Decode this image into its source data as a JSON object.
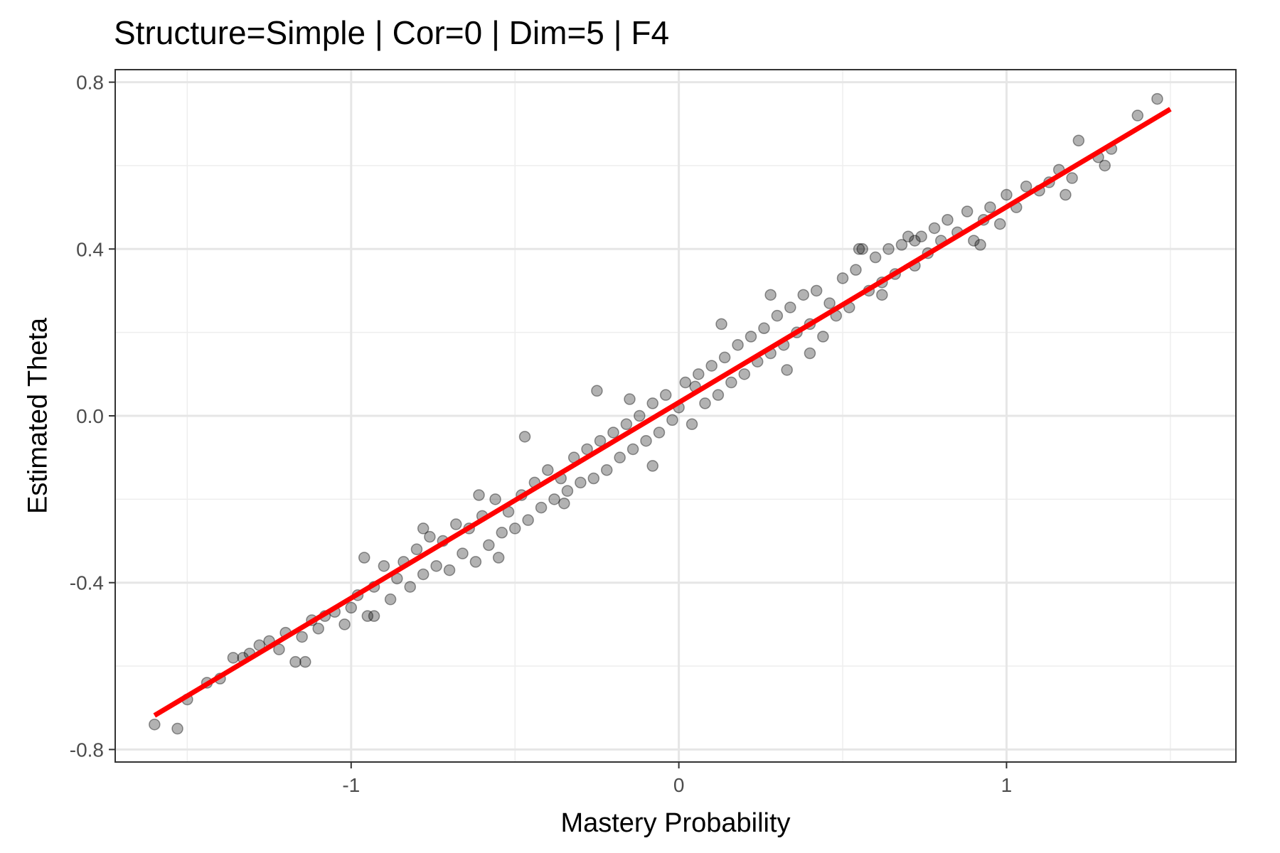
{
  "chart_data": {
    "type": "scatter",
    "title": "Structure=Simple | Cor=0 | Dim=5 | F4",
    "xlabel": "Mastery Probability",
    "ylabel": "Estimated Theta",
    "xlim": [
      -1.72,
      1.7
    ],
    "ylim": [
      -0.83,
      0.83
    ],
    "x_ticks": [
      -1,
      0,
      1
    ],
    "x_tick_labels": [
      "-1",
      "0",
      "1"
    ],
    "y_ticks": [
      -0.8,
      -0.4,
      0.0,
      0.4,
      0.8
    ],
    "y_tick_labels": [
      "-0.8",
      "-0.4",
      "0.0",
      "0.4",
      "0.8"
    ],
    "grid": true,
    "legend": "none",
    "point_color": "#000000",
    "point_opacity": 0.3,
    "line_color": "#ff0000",
    "fit_line": {
      "slope": 0.469,
      "intercept": 0.032,
      "x_range": [
        -1.6,
        1.5
      ]
    },
    "points": [
      [
        -1.6,
        -0.74
      ],
      [
        -1.53,
        -0.75
      ],
      [
        -1.5,
        -0.68
      ],
      [
        -1.44,
        -0.64
      ],
      [
        -1.4,
        -0.63
      ],
      [
        -1.36,
        -0.58
      ],
      [
        -1.33,
        -0.58
      ],
      [
        -1.31,
        -0.57
      ],
      [
        -1.28,
        -0.55
      ],
      [
        -1.25,
        -0.54
      ],
      [
        -1.22,
        -0.56
      ],
      [
        -1.2,
        -0.52
      ],
      [
        -1.15,
        -0.53
      ],
      [
        -1.17,
        -0.59
      ],
      [
        -1.14,
        -0.59
      ],
      [
        -1.12,
        -0.49
      ],
      [
        -1.1,
        -0.51
      ],
      [
        -1.08,
        -0.48
      ],
      [
        -1.05,
        -0.47
      ],
      [
        -1.02,
        -0.5
      ],
      [
        -1.0,
        -0.46
      ],
      [
        -0.98,
        -0.43
      ],
      [
        -0.95,
        -0.48
      ],
      [
        -0.93,
        -0.41
      ],
      [
        -0.96,
        -0.34
      ],
      [
        -0.9,
        -0.36
      ],
      [
        -0.88,
        -0.44
      ],
      [
        -0.86,
        -0.39
      ],
      [
        -0.84,
        -0.35
      ],
      [
        -0.82,
        -0.41
      ],
      [
        -0.8,
        -0.32
      ],
      [
        -0.78,
        -0.38
      ],
      [
        -0.76,
        -0.29
      ],
      [
        -0.74,
        -0.36
      ],
      [
        -0.72,
        -0.3
      ],
      [
        -0.7,
        -0.37
      ],
      [
        -0.68,
        -0.26
      ],
      [
        -0.66,
        -0.33
      ],
      [
        -0.64,
        -0.27
      ],
      [
        -0.62,
        -0.35
      ],
      [
        -0.6,
        -0.24
      ],
      [
        -0.58,
        -0.31
      ],
      [
        -0.56,
        -0.2
      ],
      [
        -0.54,
        -0.28
      ],
      [
        -0.52,
        -0.23
      ],
      [
        -0.5,
        -0.27
      ],
      [
        -0.48,
        -0.19
      ],
      [
        -0.46,
        -0.25
      ],
      [
        -0.44,
        -0.16
      ],
      [
        -0.42,
        -0.22
      ],
      [
        -0.4,
        -0.13
      ],
      [
        -0.38,
        -0.2
      ],
      [
        -0.36,
        -0.15
      ],
      [
        -0.34,
        -0.18
      ],
      [
        -0.32,
        -0.1
      ],
      [
        -0.3,
        -0.16
      ],
      [
        -0.28,
        -0.08
      ],
      [
        -0.26,
        -0.15
      ],
      [
        -0.24,
        -0.06
      ],
      [
        -0.22,
        -0.13
      ],
      [
        -0.2,
        -0.04
      ],
      [
        -0.18,
        -0.1
      ],
      [
        -0.16,
        -0.02
      ],
      [
        -0.14,
        -0.08
      ],
      [
        -0.12,
        0.0
      ],
      [
        -0.1,
        -0.06
      ],
      [
        -0.08,
        0.03
      ],
      [
        -0.06,
        -0.04
      ],
      [
        -0.04,
        0.05
      ],
      [
        -0.02,
        -0.01
      ],
      [
        0.0,
        0.02
      ],
      [
        0.02,
        0.08
      ],
      [
        0.04,
        -0.02
      ],
      [
        0.06,
        0.1
      ],
      [
        0.08,
        0.03
      ],
      [
        0.1,
        0.12
      ],
      [
        0.12,
        0.05
      ],
      [
        0.14,
        0.14
      ],
      [
        0.16,
        0.08
      ],
      [
        0.18,
        0.17
      ],
      [
        0.2,
        0.1
      ],
      [
        0.22,
        0.19
      ],
      [
        0.24,
        0.13
      ],
      [
        0.26,
        0.21
      ],
      [
        0.28,
        0.15
      ],
      [
        0.3,
        0.24
      ],
      [
        0.32,
        0.17
      ],
      [
        0.34,
        0.26
      ],
      [
        0.36,
        0.2
      ],
      [
        0.38,
        0.29
      ],
      [
        0.4,
        0.22
      ],
      [
        0.42,
        0.3
      ],
      [
        0.44,
        0.19
      ],
      [
        0.46,
        0.27
      ],
      [
        0.48,
        0.24
      ],
      [
        0.5,
        0.33
      ],
      [
        0.52,
        0.26
      ],
      [
        0.54,
        0.35
      ],
      [
        0.56,
        0.4
      ],
      [
        0.58,
        0.3
      ],
      [
        0.6,
        0.38
      ],
      [
        0.62,
        0.32
      ],
      [
        0.64,
        0.4
      ],
      [
        0.66,
        0.34
      ],
      [
        0.68,
        0.41
      ],
      [
        0.7,
        0.43
      ],
      [
        0.72,
        0.36
      ],
      [
        0.74,
        0.43
      ],
      [
        0.76,
        0.39
      ],
      [
        0.78,
        0.45
      ],
      [
        0.8,
        0.42
      ],
      [
        0.82,
        0.47
      ],
      [
        0.85,
        0.44
      ],
      [
        0.88,
        0.49
      ],
      [
        0.9,
        0.42
      ],
      [
        0.93,
        0.47
      ],
      [
        0.95,
        0.5
      ],
      [
        0.98,
        0.46
      ],
      [
        1.0,
        0.53
      ],
      [
        1.03,
        0.5
      ],
      [
        1.06,
        0.55
      ],
      [
        1.1,
        0.54
      ],
      [
        1.13,
        0.56
      ],
      [
        1.16,
        0.59
      ],
      [
        1.18,
        0.53
      ],
      [
        1.2,
        0.57
      ],
      [
        1.22,
        0.66
      ],
      [
        1.28,
        0.62
      ],
      [
        1.3,
        0.6
      ],
      [
        1.32,
        0.64
      ],
      [
        1.4,
        0.72
      ],
      [
        1.46,
        0.76
      ],
      [
        -0.25,
        0.06
      ],
      [
        0.13,
        0.22
      ],
      [
        -0.61,
        -0.19
      ],
      [
        -0.47,
        -0.05
      ],
      [
        0.72,
        0.42
      ],
      [
        0.55,
        0.4
      ],
      [
        0.92,
        0.41
      ],
      [
        0.4,
        0.15
      ],
      [
        -0.93,
        -0.48
      ],
      [
        -0.08,
        -0.12
      ],
      [
        0.28,
        0.29
      ],
      [
        -0.78,
        -0.27
      ],
      [
        0.62,
        0.29
      ],
      [
        -0.35,
        -0.21
      ],
      [
        -0.55,
        -0.34
      ],
      [
        0.05,
        0.07
      ],
      [
        -0.15,
        0.04
      ],
      [
        0.33,
        0.11
      ]
    ]
  }
}
